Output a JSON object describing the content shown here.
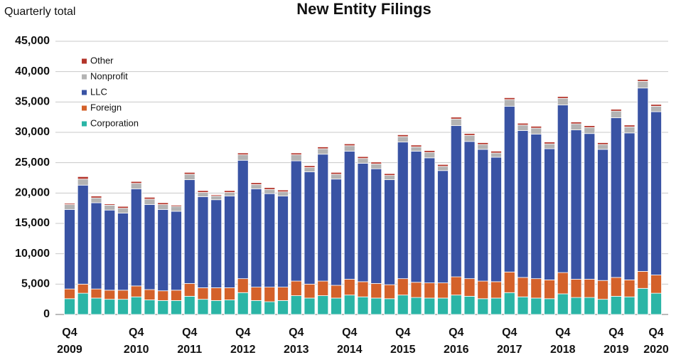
{
  "chart_data": {
    "type": "stacked_bar",
    "title": "New Entity Filings",
    "y_axis_label": "Quarterly total",
    "categories": [
      "Q4 2009",
      null,
      null,
      null,
      null,
      "Q4 2010",
      null,
      null,
      null,
      "Q4 2011",
      null,
      null,
      null,
      "Q4 2012",
      null,
      null,
      null,
      "Q4 2013",
      null,
      null,
      null,
      "Q4 2014",
      null,
      null,
      null,
      "Q4 2015",
      null,
      null,
      null,
      "Q4 2016",
      null,
      null,
      null,
      "Q4 2017",
      null,
      null,
      null,
      "Q4 2018",
      null,
      null,
      null,
      "Q4 2019",
      null,
      null,
      "Q4 2020"
    ],
    "series": [
      {
        "name": "Corporation",
        "color": "#2bb5a6",
        "values": [
          2600,
          3500,
          2700,
          2500,
          2500,
          2900,
          2400,
          2300,
          2300,
          3000,
          2500,
          2300,
          2400,
          3600,
          2300,
          2100,
          2300,
          3100,
          2700,
          3100,
          2700,
          3200,
          2900,
          2700,
          2600,
          3200,
          2800,
          2700,
          2700,
          3200,
          3000,
          2600,
          2700,
          3600,
          2900,
          2700,
          2600,
          3400,
          2800,
          2800,
          2500,
          3000,
          2900,
          4300,
          3500
        ]
      },
      {
        "name": "Foreign",
        "color": "#d4612a",
        "values": [
          1600,
          1500,
          1500,
          1500,
          1500,
          1800,
          1700,
          1600,
          1700,
          2100,
          1900,
          2100,
          2000,
          2300,
          2200,
          2400,
          2200,
          2400,
          2300,
          2400,
          2100,
          2600,
          2500,
          2400,
          2300,
          2700,
          2500,
          2500,
          2500,
          3000,
          2900,
          2900,
          2700,
          3400,
          3200,
          3200,
          3100,
          3500,
          3000,
          3000,
          3100,
          3100,
          2800,
          2800,
          3000
        ]
      },
      {
        "name": "LLC",
        "color": "#3953a4",
        "values": [
          13100,
          16300,
          14200,
          13200,
          12700,
          16000,
          14000,
          13400,
          13000,
          17100,
          15000,
          14500,
          15100,
          19500,
          16200,
          15400,
          15000,
          19800,
          18500,
          20900,
          17500,
          21100,
          19500,
          18900,
          17300,
          22500,
          21600,
          20600,
          18500,
          24900,
          22600,
          21700,
          20500,
          27300,
          24200,
          23800,
          21600,
          27600,
          24600,
          24000,
          21600,
          26300,
          24200,
          30200,
          26900
        ]
      },
      {
        "name": "Nonprofit",
        "color": "#b3b3b3",
        "values": [
          800,
          1000,
          800,
          800,
          800,
          900,
          900,
          800,
          800,
          900,
          700,
          600,
          600,
          900,
          700,
          700,
          700,
          1000,
          700,
          900,
          800,
          900,
          800,
          800,
          700,
          900,
          700,
          900,
          700,
          1100,
          1000,
          800,
          700,
          1100,
          900,
          1000,
          800,
          1100,
          1000,
          1000,
          800,
          1100,
          1000,
          1100,
          900
        ]
      },
      {
        "name": "Other",
        "color": "#b3342a",
        "values": [
          200,
          400,
          300,
          200,
          300,
          300,
          300,
          300,
          200,
          300,
          300,
          200,
          300,
          300,
          300,
          300,
          300,
          300,
          300,
          300,
          300,
          300,
          300,
          300,
          300,
          300,
          300,
          300,
          300,
          300,
          300,
          300,
          300,
          300,
          300,
          300,
          300,
          300,
          300,
          300,
          300,
          300,
          300,
          300,
          300
        ]
      }
    ],
    "ylim": [
      0,
      45000
    ],
    "yticks": [
      0,
      {
        "value": 5000,
        "label": "5,000"
      },
      {
        "value": 10000,
        "label": "10,000"
      },
      {
        "value": 15000,
        "label": "15,000"
      },
      {
        "value": 20000,
        "label": "20,000"
      },
      {
        "value": 25000,
        "label": "25,000"
      },
      {
        "value": 30000,
        "label": "30,000"
      },
      {
        "value": 35000,
        "label": "35,000"
      },
      {
        "value": 40000,
        "label": "40,000"
      },
      {
        "value": 45000,
        "label": "45,000"
      }
    ],
    "grid": true
  }
}
